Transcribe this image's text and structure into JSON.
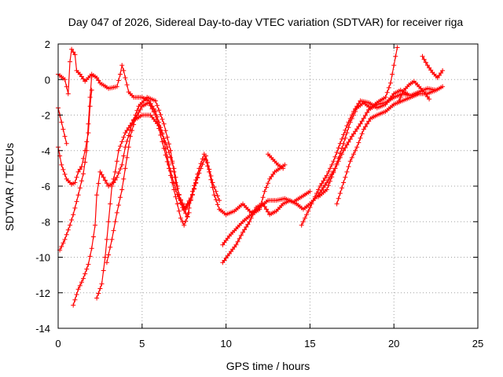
{
  "chart_data": {
    "type": "scatter",
    "title": "Day 047 of 2026, Sidereal Day-to-day VTEC variation (SDTVAR) for receiver riga",
    "xlabel": "GPS time / hours",
    "ylabel": "SDTVAR / TECUs",
    "xlim": [
      0,
      25
    ],
    "ylim": [
      -14,
      2
    ],
    "xticks": [
      0,
      5,
      10,
      15,
      20,
      25
    ],
    "yticks": [
      -14,
      -12,
      -10,
      -8,
      -6,
      -4,
      -2,
      0,
      2
    ],
    "xtick_labels": [
      "0",
      "5",
      "10",
      "15",
      "20",
      "25"
    ],
    "ytick_labels": [
      "-14",
      "-12",
      "-10",
      "-8",
      "-6",
      "-4",
      "-2",
      "0",
      "2"
    ],
    "grid": true,
    "marker": "+",
    "color": "#ff0000",
    "series": [
      {
        "name": "s1",
        "points": [
          [
            0,
            0.3
          ],
          [
            0.4,
            0.0
          ],
          [
            0.6,
            -0.8
          ],
          [
            0.7,
            1.0
          ],
          [
            0.8,
            1.7
          ],
          [
            1.0,
            1.4
          ],
          [
            1.1,
            0.5
          ],
          [
            1.3,
            0.3
          ],
          [
            1.6,
            -0.1
          ],
          [
            1.8,
            0.1
          ],
          [
            2.0,
            0.3
          ],
          [
            2.3,
            0.1
          ],
          [
            2.5,
            -0.2
          ],
          [
            3.0,
            -0.5
          ],
          [
            3.5,
            -0.4
          ],
          [
            3.7,
            0.3
          ],
          [
            3.8,
            0.8
          ],
          [
            3.9,
            0.5
          ],
          [
            4.2,
            -0.7
          ],
          [
            4.5,
            -1.0
          ],
          [
            5.0,
            -1.0
          ],
          [
            5.4,
            -1.2
          ],
          [
            5.8,
            -1.8
          ],
          [
            6.2,
            -3.0
          ],
          [
            6.6,
            -4.8
          ],
          [
            7.0,
            -6.2
          ],
          [
            7.4,
            -7.2
          ],
          [
            7.7,
            -7.7
          ],
          [
            8.0,
            -6.3
          ],
          [
            8.4,
            -5.0
          ],
          [
            8.7,
            -4.2
          ],
          [
            9.0,
            -5.2
          ],
          [
            9.3,
            -6.5
          ],
          [
            9.6,
            -7.3
          ],
          [
            10.0,
            -7.6
          ],
          [
            10.5,
            -7.4
          ],
          [
            11.0,
            -7.0
          ],
          [
            11.5,
            -7.5
          ],
          [
            12.0,
            -7.2
          ],
          [
            12.5,
            -6.8
          ],
          [
            13.0,
            -6.8
          ],
          [
            13.5,
            -6.7
          ],
          [
            14.0,
            -6.9
          ],
          [
            14.5,
            -6.6
          ],
          [
            15.0,
            -6.3
          ]
        ]
      },
      {
        "name": "s2",
        "points": [
          [
            0,
            -1.6
          ],
          [
            0.2,
            -2.4
          ],
          [
            0.4,
            -3.2
          ],
          [
            0.5,
            -3.6
          ]
        ]
      },
      {
        "name": "s3",
        "points": [
          [
            0,
            -3.8
          ],
          [
            0.2,
            -4.8
          ],
          [
            0.5,
            -5.6
          ],
          [
            0.8,
            -5.9
          ],
          [
            1.0,
            -5.8
          ],
          [
            1.2,
            -5.2
          ],
          [
            1.4,
            -4.9
          ],
          [
            1.6,
            -4.0
          ],
          [
            1.8,
            -3.0
          ],
          [
            1.9,
            -1.5
          ],
          [
            2.0,
            -0.6
          ]
        ]
      },
      {
        "name": "s4",
        "points": [
          [
            0.1,
            -9.6
          ],
          [
            0.4,
            -9.0
          ],
          [
            0.7,
            -8.2
          ],
          [
            0.9,
            -7.6
          ],
          [
            1.2,
            -6.5
          ],
          [
            1.5,
            -5.3
          ],
          [
            1.7,
            -4.0
          ],
          [
            1.8,
            -2.5
          ],
          [
            1.9,
            -1.0
          ],
          [
            2.0,
            0.2
          ]
        ]
      },
      {
        "name": "s5",
        "points": [
          [
            0.9,
            -12.7
          ],
          [
            1.2,
            -11.8
          ],
          [
            1.5,
            -11.2
          ],
          [
            1.8,
            -10.4
          ],
          [
            2.0,
            -9.5
          ],
          [
            2.2,
            -8.2
          ],
          [
            2.3,
            -6.5
          ],
          [
            2.5,
            -5.2
          ],
          [
            2.7,
            -5.5
          ],
          [
            3.0,
            -6.0
          ],
          [
            3.3,
            -5.8
          ],
          [
            3.5,
            -5.5
          ],
          [
            3.8,
            -4.8
          ],
          [
            4.0,
            -3.8
          ],
          [
            4.4,
            -2.5
          ],
          [
            4.8,
            -1.5
          ],
          [
            5.3,
            -1.0
          ],
          [
            5.8,
            -1.2
          ],
          [
            6.3,
            -2.5
          ],
          [
            6.7,
            -4.0
          ],
          [
            7.0,
            -5.8
          ],
          [
            7.3,
            -6.8
          ],
          [
            7.6,
            -7.3
          ],
          [
            7.9,
            -6.8
          ],
          [
            8.2,
            -5.8
          ],
          [
            8.5,
            -5.0
          ],
          [
            8.8,
            -4.3
          ],
          [
            9.2,
            -5.8
          ],
          [
            9.6,
            -6.8
          ]
        ]
      },
      {
        "name": "s6",
        "points": [
          [
            2.3,
            -12.3
          ],
          [
            2.6,
            -11.5
          ],
          [
            2.8,
            -10.0
          ],
          [
            3.0,
            -8.0
          ],
          [
            3.2,
            -6.0
          ],
          [
            3.4,
            -5.2
          ],
          [
            3.6,
            -4.0
          ],
          [
            4.0,
            -3.0
          ],
          [
            4.5,
            -2.3
          ],
          [
            5.0,
            -2.0
          ],
          [
            5.5,
            -2.0
          ],
          [
            6.0,
            -2.6
          ],
          [
            6.5,
            -3.8
          ],
          [
            6.9,
            -5.0
          ],
          [
            7.2,
            -6.5
          ],
          [
            7.5,
            -7.3
          ],
          [
            7.7,
            -7.0
          ],
          [
            8.0,
            -6.5
          ],
          [
            8.3,
            -5.5
          ]
        ]
      },
      {
        "name": "s7",
        "points": [
          [
            2.9,
            -10.3
          ],
          [
            3.2,
            -9.0
          ],
          [
            3.5,
            -7.5
          ],
          [
            3.8,
            -6.2
          ],
          [
            4.0,
            -5.0
          ],
          [
            4.3,
            -3.2
          ],
          [
            4.6,
            -2.2
          ],
          [
            5.0,
            -1.5
          ],
          [
            5.4,
            -1.3
          ],
          [
            5.8,
            -2.0
          ],
          [
            6.2,
            -3.5
          ],
          [
            6.6,
            -5.0
          ],
          [
            7.0,
            -6.6
          ],
          [
            7.3,
            -7.8
          ],
          [
            7.5,
            -8.2
          ],
          [
            7.8,
            -7.5
          ]
        ]
      },
      {
        "name": "s8",
        "points": [
          [
            9.8,
            -10.3
          ],
          [
            10.2,
            -9.8
          ],
          [
            10.6,
            -9.3
          ],
          [
            11.0,
            -8.6
          ],
          [
            11.4,
            -8.0
          ],
          [
            11.8,
            -7.2
          ],
          [
            12.2,
            -7.0
          ],
          [
            12.6,
            -7.6
          ],
          [
            13.0,
            -7.4
          ],
          [
            13.4,
            -7.0
          ],
          [
            13.8,
            -6.8
          ],
          [
            14.2,
            -7.0
          ],
          [
            14.6,
            -7.3
          ],
          [
            15.0,
            -7.0
          ],
          [
            15.5,
            -6.5
          ],
          [
            16.0,
            -5.8
          ],
          [
            16.5,
            -5.0
          ],
          [
            17.0,
            -4.0
          ],
          [
            17.5,
            -3.2
          ],
          [
            18.0,
            -2.5
          ],
          [
            18.5,
            -1.7
          ],
          [
            19.0,
            -1.4
          ],
          [
            19.5,
            -1.3
          ],
          [
            20.0,
            -1.0
          ],
          [
            20.5,
            -0.8
          ],
          [
            21.0,
            -0.9
          ],
          [
            21.5,
            -0.7
          ],
          [
            22.0,
            -0.5
          ],
          [
            22.5,
            -0.6
          ],
          [
            22.9,
            -0.4
          ]
        ]
      },
      {
        "name": "s9",
        "points": [
          [
            9.8,
            -9.3
          ],
          [
            10.2,
            -8.8
          ],
          [
            10.6,
            -8.4
          ],
          [
            11.0,
            -8.0
          ],
          [
            11.5,
            -7.6
          ],
          [
            12.0,
            -7.3
          ],
          [
            12.3,
            -6.3
          ],
          [
            12.6,
            -5.6
          ],
          [
            12.9,
            -5.2
          ],
          [
            13.2,
            -5.0
          ],
          [
            13.5,
            -4.8
          ]
        ]
      },
      {
        "name": "s10",
        "points": [
          [
            12.5,
            -4.2
          ],
          [
            12.8,
            -4.5
          ],
          [
            13.1,
            -4.8
          ],
          [
            13.4,
            -5.0
          ]
        ]
      },
      {
        "name": "s11",
        "points": [
          [
            14.5,
            -8.2
          ],
          [
            14.8,
            -7.6
          ],
          [
            15.2,
            -6.8
          ],
          [
            15.6,
            -6.0
          ],
          [
            16.0,
            -5.4
          ],
          [
            16.4,
            -4.6
          ],
          [
            16.8,
            -3.6
          ],
          [
            17.2,
            -2.6
          ],
          [
            17.6,
            -1.8
          ],
          [
            18.0,
            -1.2
          ],
          [
            18.5,
            -1.3
          ],
          [
            19.0,
            -1.6
          ],
          [
            19.5,
            -1.4
          ],
          [
            20.0,
            -0.8
          ],
          [
            20.4,
            -0.6
          ],
          [
            20.8,
            -0.8
          ]
        ]
      },
      {
        "name": "s12",
        "points": [
          [
            15.5,
            -6.6
          ],
          [
            16.0,
            -6.2
          ],
          [
            16.5,
            -5.0
          ],
          [
            17.0,
            -3.6
          ],
          [
            17.4,
            -2.4
          ],
          [
            17.8,
            -1.6
          ],
          [
            18.2,
            -1.3
          ],
          [
            18.6,
            -1.6
          ],
          [
            19.0,
            -1.3
          ],
          [
            19.5,
            -1.0
          ],
          [
            19.8,
            -0.2
          ],
          [
            20.0,
            0.8
          ],
          [
            20.2,
            1.8
          ]
        ]
      },
      {
        "name": "s13",
        "points": [
          [
            16.6,
            -7.0
          ],
          [
            17.0,
            -5.8
          ],
          [
            17.4,
            -4.6
          ],
          [
            17.8,
            -3.8
          ],
          [
            18.2,
            -2.8
          ],
          [
            18.6,
            -2.2
          ],
          [
            19.0,
            -2.0
          ],
          [
            19.5,
            -1.8
          ],
          [
            20.0,
            -1.4
          ],
          [
            20.5,
            -1.2
          ],
          [
            21.0,
            -1.0
          ],
          [
            21.5,
            -0.8
          ],
          [
            22.0,
            -0.8
          ],
          [
            22.5,
            -0.6
          ]
        ]
      },
      {
        "name": "s14",
        "points": [
          [
            20.3,
            -1.2
          ],
          [
            20.6,
            -0.6
          ],
          [
            20.9,
            -0.3
          ],
          [
            21.2,
            -0.1
          ],
          [
            21.5,
            -0.4
          ],
          [
            21.8,
            -0.7
          ],
          [
            22.1,
            -1.1
          ]
        ]
      },
      {
        "name": "s15",
        "points": [
          [
            21.7,
            1.3
          ],
          [
            22.0,
            0.8
          ],
          [
            22.3,
            0.4
          ],
          [
            22.6,
            0.1
          ],
          [
            22.9,
            0.5
          ]
        ]
      }
    ]
  }
}
